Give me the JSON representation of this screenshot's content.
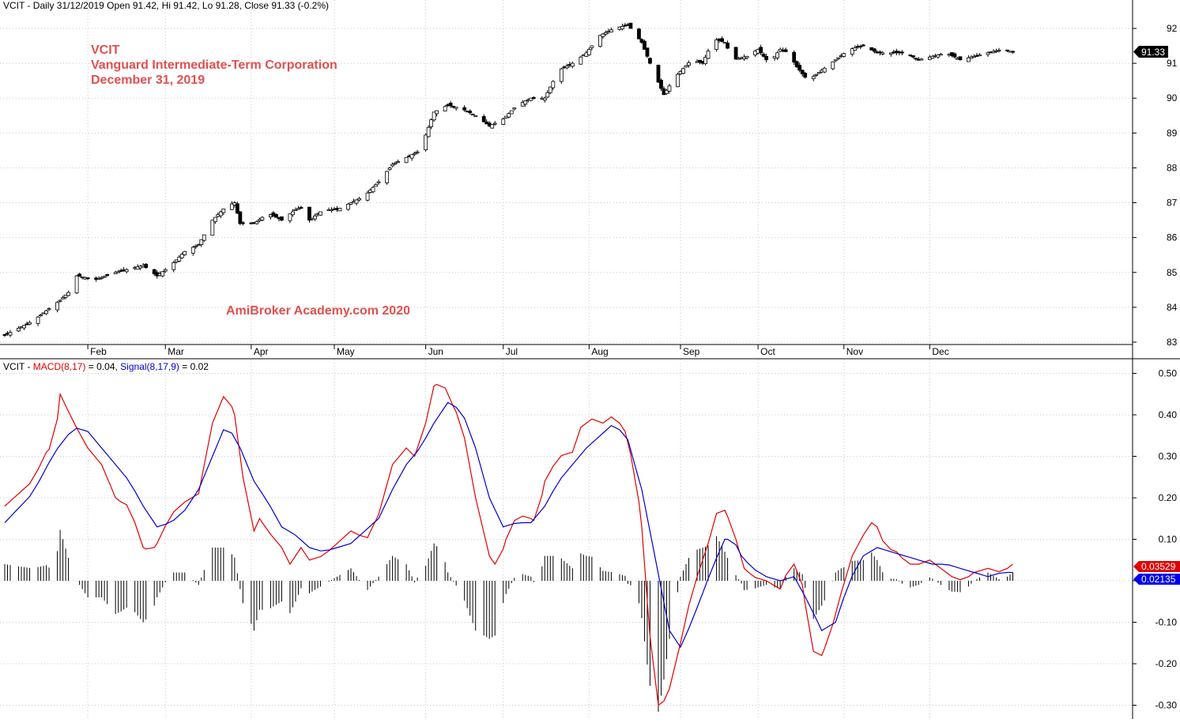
{
  "price_panel": {
    "header": "VCIT - Daily 31/12/2019 Open 91.42, Hi 91.42, Lo 91.28, Close 91.33 (-0.2%)",
    "overlay_lines": [
      "VCIT",
      "Vanguard Intermediate-Term Corporation",
      "December 31, 2019"
    ],
    "watermark": "AmiBroker Academy.com  2020",
    "last_price_label": "91.33"
  },
  "macd_panel": {
    "header_prefix": "VCIT - ",
    "header_macd": "MACD(8,17)",
    "header_macd_value": " = 0.04, ",
    "header_signal": "Signal(8,17,9)",
    "header_signal_value": " = 0.02",
    "macd_marker_label": "0.03529",
    "signal_marker_label": "0.02135"
  },
  "colors": {
    "overlay_text": "#e05050",
    "macd_line": "#e00000",
    "signal_line": "#0000cc",
    "histogram": "#000000",
    "grid": "#c8c8c8",
    "price_marker_bg": "#000000",
    "macd_marker_bg": "#e00000",
    "signal_marker_bg": "#0000ee"
  },
  "chart_data": [
    {
      "type": "candlestick",
      "title": "VCIT - Daily 31/12/2019",
      "x_axis": {
        "type": "date",
        "range": [
          "2019-01-02",
          "2019-12-31"
        ],
        "tick_labels": [
          "Feb",
          "Mar",
          "Apr",
          "May",
          "Jun",
          "Jul",
          "Aug",
          "Sep",
          "Oct",
          "Nov",
          "Dec"
        ]
      },
      "y_axis": {
        "ticks": [
          83,
          84,
          85,
          86,
          87,
          88,
          89,
          90,
          91,
          92
        ],
        "ylim": [
          82.85,
          92.55
        ],
        "side": "right"
      },
      "grid": true,
      "last_close": 91.33,
      "close_series": {
        "date_start": "2019-01-02",
        "date_end": "2019-12-31",
        "points": [
          [
            0,
            83.2
          ],
          [
            10,
            83.6
          ],
          [
            20,
            84.2
          ],
          [
            24,
            84.5
          ],
          [
            26,
            84.9
          ],
          [
            33,
            84.8
          ],
          [
            40,
            85.0
          ],
          [
            45,
            85.1
          ],
          [
            50,
            85.2
          ],
          [
            55,
            84.9
          ],
          [
            60,
            85.2
          ],
          [
            65,
            85.6
          ],
          [
            70,
            85.8
          ],
          [
            75,
            86.5
          ],
          [
            80,
            86.9
          ],
          [
            83,
            87.0
          ],
          [
            85,
            86.4
          ],
          [
            90,
            86.4
          ],
          [
            95,
            86.7
          ],
          [
            100,
            86.5
          ],
          [
            105,
            86.8
          ],
          [
            108,
            86.9
          ],
          [
            110,
            86.5
          ],
          [
            115,
            86.8
          ],
          [
            120,
            86.8
          ],
          [
            125,
            87.0
          ],
          [
            130,
            87.2
          ],
          [
            135,
            87.6
          ],
          [
            140,
            88.1
          ],
          [
            145,
            88.3
          ],
          [
            150,
            88.5
          ],
          [
            155,
            89.6
          ],
          [
            160,
            89.8
          ],
          [
            165,
            89.7
          ],
          [
            170,
            89.5
          ],
          [
            175,
            89.2
          ],
          [
            180,
            89.4
          ],
          [
            185,
            89.8
          ],
          [
            190,
            90.0
          ],
          [
            195,
            90.0
          ],
          [
            200,
            90.8
          ],
          [
            205,
            91.0
          ],
          [
            210,
            91.3
          ],
          [
            215,
            91.8
          ],
          [
            220,
            92.0
          ],
          [
            225,
            92.1
          ],
          [
            230,
            91.6
          ],
          [
            233,
            91.0
          ],
          [
            238,
            90.1
          ],
          [
            242,
            90.6
          ],
          [
            248,
            91.1
          ],
          [
            252,
            91.0
          ],
          [
            256,
            91.7
          ],
          [
            260,
            91.6
          ],
          [
            263,
            91.1
          ],
          [
            268,
            91.2
          ],
          [
            272,
            91.4
          ],
          [
            276,
            91.0
          ],
          [
            280,
            91.4
          ],
          [
            283,
            91.3
          ],
          [
            286,
            90.9
          ],
          [
            290,
            90.5
          ],
          [
            295,
            90.8
          ],
          [
            300,
            91.1
          ],
          [
            305,
            91.4
          ],
          [
            310,
            91.5
          ],
          [
            315,
            91.3
          ],
          [
            320,
            91.3
          ],
          [
            325,
            91.3
          ],
          [
            330,
            91.1
          ],
          [
            335,
            91.2
          ],
          [
            340,
            91.3
          ],
          [
            345,
            91.1
          ],
          [
            350,
            91.2
          ],
          [
            355,
            91.3
          ],
          [
            360,
            91.4
          ],
          [
            364,
            91.33
          ]
        ]
      }
    },
    {
      "type": "line",
      "title": "VCIT - MACD(8,17) = 0.04, Signal(8,17,9) = 0.02",
      "x_axis": {
        "type": "date",
        "range": [
          "2019-01-02",
          "2019-12-31"
        ]
      },
      "y_axis": {
        "ticks": [
          -0.3,
          -0.2,
          -0.1,
          0,
          0.1,
          0.2,
          0.3,
          0.4,
          0.5
        ],
        "tick_labels": [
          "-0.30",
          "-0.20",
          "-0.10",
          "",
          "0.10",
          "0.20",
          "0.30",
          "0.40",
          "0.50"
        ],
        "ylim": [
          -0.31,
          0.52
        ],
        "side": "right"
      },
      "grid": true,
      "last_values": {
        "macd": 0.03529,
        "signal": 0.02135
      },
      "histogram": "macd - signal",
      "series": [
        {
          "name": "MACD(8,17)",
          "color": "#e00000",
          "points": [
            [
              0,
              0.18
            ],
            [
              5,
              0.21
            ],
            [
              10,
              0.24
            ],
            [
              15,
              0.31
            ],
            [
              18,
              0.33
            ],
            [
              20,
              0.45
            ],
            [
              25,
              0.38
            ],
            [
              30,
              0.32
            ],
            [
              35,
              0.28
            ],
            [
              40,
              0.2
            ],
            [
              42,
              0.19
            ],
            [
              45,
              0.18
            ],
            [
              50,
              0.08
            ],
            [
              53,
              0.07
            ],
            [
              55,
              0.09
            ],
            [
              60,
              0.16
            ],
            [
              65,
              0.19
            ],
            [
              70,
              0.21
            ],
            [
              75,
              0.38
            ],
            [
              80,
              0.46
            ],
            [
              83,
              0.4
            ],
            [
              86,
              0.25
            ],
            [
              90,
              0.12
            ],
            [
              92,
              0.15
            ],
            [
              95,
              0.12
            ],
            [
              100,
              0.08
            ],
            [
              103,
              0.04
            ],
            [
              107,
              0.08
            ],
            [
              110,
              0.05
            ],
            [
              115,
              0.06
            ],
            [
              120,
              0.09
            ],
            [
              125,
              0.12
            ],
            [
              128,
              0.11
            ],
            [
              130,
              0.09
            ],
            [
              135,
              0.16
            ],
            [
              140,
              0.28
            ],
            [
              145,
              0.32
            ],
            [
              148,
              0.3
            ],
            [
              152,
              0.38
            ],
            [
              155,
              0.47
            ],
            [
              158,
              0.48
            ],
            [
              162,
              0.42
            ],
            [
              165,
              0.38
            ],
            [
              170,
              0.2
            ],
            [
              175,
              0.06
            ],
            [
              178,
              0.03
            ],
            [
              181,
              0.1
            ],
            [
              185,
              0.16
            ],
            [
              190,
              0.15
            ],
            [
              192,
              0.14
            ],
            [
              195,
              0.24
            ],
            [
              200,
              0.3
            ],
            [
              205,
              0.31
            ],
            [
              208,
              0.37
            ],
            [
              212,
              0.39
            ],
            [
              216,
              0.38
            ],
            [
              220,
              0.4
            ],
            [
              224,
              0.36
            ],
            [
              228,
              0.25
            ],
            [
              230,
              0.13
            ],
            [
              232,
              -0.05
            ],
            [
              234,
              -0.22
            ],
            [
              236,
              -0.3
            ],
            [
              238,
              -0.29
            ],
            [
              240,
              -0.26
            ],
            [
              244,
              -0.15
            ],
            [
              248,
              -0.03
            ],
            [
              252,
              0.05
            ],
            [
              254,
              0.09
            ],
            [
              256,
              0.16
            ],
            [
              260,
              0.17
            ],
            [
              262,
              0.14
            ],
            [
              264,
              0.1
            ],
            [
              267,
              0.03
            ],
            [
              270,
              0.01
            ],
            [
              275,
              0.0
            ],
            [
              280,
              -0.02
            ],
            [
              283,
              0.03
            ],
            [
              285,
              0.04
            ],
            [
              288,
              -0.01
            ],
            [
              290,
              -0.1
            ],
            [
              292,
              -0.17
            ],
            [
              295,
              -0.18
            ],
            [
              298,
              -0.13
            ],
            [
              302,
              -0.03
            ],
            [
              306,
              0.06
            ],
            [
              310,
              0.11
            ],
            [
              313,
              0.14
            ],
            [
              315,
              0.13
            ],
            [
              318,
              0.08
            ],
            [
              322,
              0.07
            ],
            [
              326,
              0.04
            ],
            [
              330,
              0.04
            ],
            [
              334,
              0.05
            ],
            [
              338,
              0.03
            ],
            [
              342,
              0.01
            ],
            [
              346,
              0.0
            ],
            [
              350,
              0.02
            ],
            [
              355,
              0.03
            ],
            [
              360,
              0.02
            ],
            [
              364,
              0.04
            ]
          ]
        },
        {
          "name": "Signal(8,17,9)",
          "color": "#0000cc",
          "points": [
            [
              0,
              0.14
            ],
            [
              10,
              0.21
            ],
            [
              18,
              0.31
            ],
            [
              25,
              0.37
            ],
            [
              30,
              0.36
            ],
            [
              35,
              0.32
            ],
            [
              40,
              0.28
            ],
            [
              45,
              0.24
            ],
            [
              50,
              0.18
            ],
            [
              55,
              0.13
            ],
            [
              60,
              0.14
            ],
            [
              65,
              0.17
            ],
            [
              70,
              0.22
            ],
            [
              75,
              0.3
            ],
            [
              80,
              0.38
            ],
            [
              85,
              0.32
            ],
            [
              90,
              0.24
            ],
            [
              95,
              0.19
            ],
            [
              100,
              0.13
            ],
            [
              105,
              0.11
            ],
            [
              110,
              0.08
            ],
            [
              115,
              0.07
            ],
            [
              120,
              0.08
            ],
            [
              125,
              0.09
            ],
            [
              130,
              0.12
            ],
            [
              135,
              0.15
            ],
            [
              140,
              0.22
            ],
            [
              145,
              0.28
            ],
            [
              150,
              0.32
            ],
            [
              155,
              0.38
            ],
            [
              160,
              0.43
            ],
            [
              165,
              0.41
            ],
            [
              170,
              0.32
            ],
            [
              175,
              0.2
            ],
            [
              180,
              0.13
            ],
            [
              185,
              0.14
            ],
            [
              190,
              0.14
            ],
            [
              195,
              0.18
            ],
            [
              200,
              0.24
            ],
            [
              205,
              0.28
            ],
            [
              210,
              0.32
            ],
            [
              215,
              0.35
            ],
            [
              220,
              0.38
            ],
            [
              225,
              0.34
            ],
            [
              230,
              0.22
            ],
            [
              235,
              0.05
            ],
            [
              240,
              -0.12
            ],
            [
              244,
              -0.16
            ],
            [
              248,
              -0.1
            ],
            [
              252,
              -0.03
            ],
            [
              256,
              0.04
            ],
            [
              260,
              0.1
            ],
            [
              263,
              0.1
            ],
            [
              266,
              0.06
            ],
            [
              270,
              0.03
            ],
            [
              275,
              0.01
            ],
            [
              280,
              0.0
            ],
            [
              285,
              0.01
            ],
            [
              290,
              -0.05
            ],
            [
              295,
              -0.12
            ],
            [
              300,
              -0.1
            ],
            [
              305,
              0.0
            ],
            [
              310,
              0.06
            ],
            [
              315,
              0.08
            ],
            [
              320,
              0.07
            ],
            [
              325,
              0.06
            ],
            [
              330,
              0.05
            ],
            [
              335,
              0.04
            ],
            [
              340,
              0.04
            ],
            [
              345,
              0.03
            ],
            [
              350,
              0.02
            ],
            [
              355,
              0.01
            ],
            [
              360,
              0.02
            ],
            [
              364,
              0.02
            ]
          ]
        }
      ]
    }
  ]
}
